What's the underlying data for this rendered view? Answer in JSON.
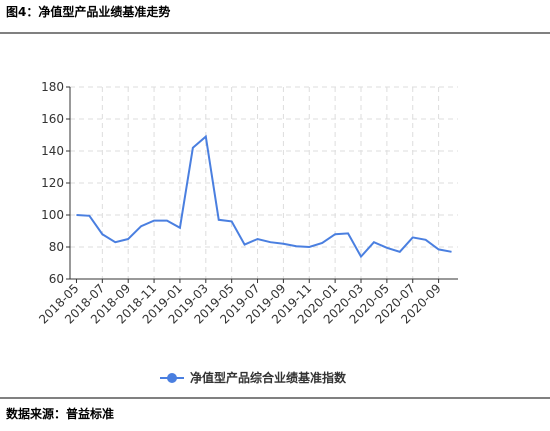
{
  "header": {
    "title": "图4：净值型产品业绩基准走势"
  },
  "chart_data": {
    "type": "line",
    "categories": [
      "2018-05",
      null,
      "2018-07",
      null,
      "2018-09",
      null,
      "2018-11",
      null,
      "2019-01",
      null,
      "2019-03",
      null,
      "2019-05",
      null,
      "2019-07",
      null,
      "2019-09",
      null,
      "2019-11",
      null,
      "2020-01",
      null,
      "2020-03",
      null,
      "2020-05",
      null,
      "2020-07",
      null,
      "2020-09",
      null
    ],
    "series": [
      {
        "name": "净值型产品综合业绩基准指数",
        "color": "#4a7fe0",
        "values": [
          100,
          99.5,
          88,
          83,
          85,
          93,
          96.5,
          96.5,
          92,
          142,
          149,
          97,
          96,
          81.5,
          85,
          83,
          82,
          80.5,
          80,
          82.5,
          88,
          88.5,
          74,
          83,
          79.5,
          77,
          86,
          84.5,
          78.5,
          77
        ]
      }
    ],
    "ylim": [
      60,
      180
    ],
    "yticks": [
      60,
      80,
      100,
      120,
      140,
      160,
      180
    ],
    "grid": true,
    "legend": "bottom"
  },
  "footer": {
    "source": "数据来源：普益标准"
  }
}
